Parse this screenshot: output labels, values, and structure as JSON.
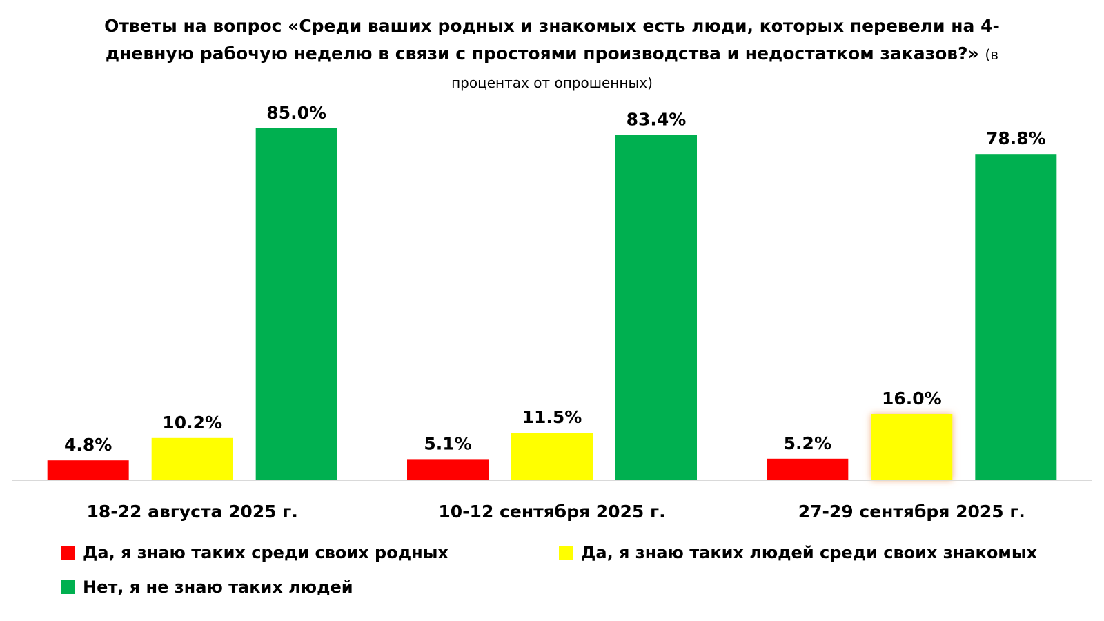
{
  "chart_data": {
    "type": "bar",
    "title": "Ответы на вопрос «Среди ваших родных и знакомых есть люди, которых перевели на 4-дневную рабочую неделю в связи с простоями производства и недостатком заказов?»",
    "subtitle": "(в процентах от опрошенных)",
    "categories": [
      "18-22 августа 2025 г.",
      "10-12 сентября 2025 г.",
      "27-29 сентября 2025 г."
    ],
    "series": [
      {
        "name": "Да, я знаю таких среди своих родных",
        "color": "#ff0000",
        "values": [
          4.8,
          5.1,
          5.2
        ],
        "labels": [
          "4.8%",
          "5.1%",
          "5.2%"
        ]
      },
      {
        "name": "Да, я знаю таких людей среди своих знакомых",
        "color": "#ffff00",
        "values": [
          10.2,
          11.5,
          16.0
        ],
        "labels": [
          "10.2%",
          "11.5%",
          "16.0%"
        ]
      },
      {
        "name": "Нет, я не знаю таких людей",
        "color": "#00b050",
        "values": [
          85.0,
          83.4,
          78.8
        ],
        "labels": [
          "85.0%",
          "83.4%",
          "78.8%"
        ]
      }
    ],
    "highlight": {
      "series": 1,
      "category": 2,
      "glow_color": "#f4b183"
    },
    "ylim": [
      0,
      100
    ],
    "grid": false,
    "legend_position": "bottom"
  }
}
